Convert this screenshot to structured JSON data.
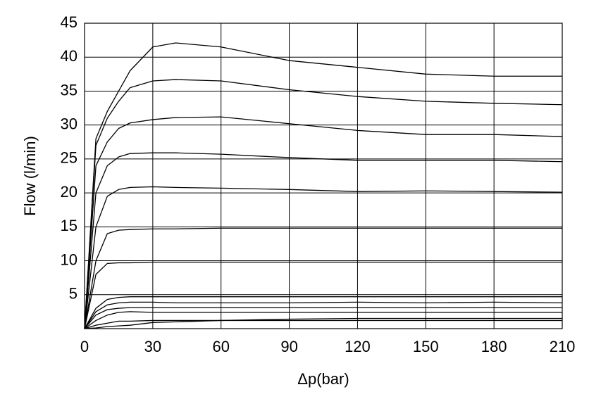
{
  "chart_data": {
    "type": "line",
    "x_label": "Δp(bar)",
    "y_label": "Flow (l/min)",
    "x": [
      0,
      5,
      10,
      15,
      20,
      30,
      40,
      60,
      90,
      120,
      150,
      180,
      210
    ],
    "series": [
      {
        "color": "#000000",
        "values": [
          0,
          28,
          32,
          35,
          38,
          41.5,
          42.1,
          41.5,
          39.5,
          38.5,
          37.5,
          37.2,
          37.2
        ]
      },
      {
        "color": "#000000",
        "values": [
          0,
          27,
          31,
          33.5,
          35.5,
          36.5,
          36.7,
          36.5,
          35.2,
          34.2,
          33.5,
          33.2,
          33
        ]
      },
      {
        "color": "#000000",
        "values": [
          0,
          24,
          27.5,
          29.5,
          30.3,
          30.8,
          31.1,
          31.2,
          30.2,
          29.2,
          28.6,
          28.6,
          28.3
        ]
      },
      {
        "color": "#000000",
        "values": [
          0,
          20,
          24,
          25.3,
          25.8,
          25.9,
          25.9,
          25.7,
          25.2,
          24.8,
          24.8,
          24.8,
          24.6
        ]
      },
      {
        "color": "#000000",
        "values": [
          0,
          15,
          19.5,
          20.5,
          20.8,
          20.9,
          20.8,
          20.7,
          20.5,
          20.2,
          20.3,
          20.2,
          20.1
        ]
      },
      {
        "color": "#000000",
        "values": [
          0,
          10,
          14,
          14.5,
          14.6,
          14.7,
          14.7,
          14.8,
          14.8,
          14.8,
          14.8,
          14.8,
          14.8
        ]
      },
      {
        "color": "#000000",
        "values": [
          0,
          8,
          9.6,
          9.7,
          9.7,
          9.8,
          9.8,
          9.8,
          9.8,
          9.8,
          9.8,
          9.8,
          9.8
        ]
      },
      {
        "color": "#000000",
        "values": [
          0,
          3,
          4.3,
          4.6,
          4.7,
          4.7,
          4.7,
          4.7,
          4.7,
          4.7,
          4.7,
          4.7,
          4.7
        ]
      },
      {
        "color": "#000000",
        "values": [
          0,
          2.5,
          3.5,
          3.8,
          3.9,
          3.9,
          3.8,
          3.8,
          3.8,
          3.9,
          3.8,
          3.9,
          3.8
        ]
      },
      {
        "color": "#000000",
        "values": [
          0,
          2,
          2.8,
          3,
          3.1,
          3.1,
          3.1,
          3.1,
          3.1,
          3.1,
          3.1,
          3.1,
          3.1
        ]
      },
      {
        "color": "#000000",
        "values": [
          0,
          1.2,
          2,
          2.4,
          2.5,
          2.4,
          2.4,
          2.4,
          2.4,
          2.4,
          2.4,
          2.4,
          2.4
        ]
      },
      {
        "color": "#000000",
        "values": [
          0,
          0.5,
          0.8,
          1.1,
          1.1,
          1.2,
          1.2,
          1.2,
          1.2,
          1.2,
          1.2,
          1.2,
          1.2
        ]
      },
      {
        "color": "#000000",
        "values": [
          0,
          0.1,
          0.3,
          0.4,
          0.5,
          0.9,
          1,
          1.2,
          1.4,
          1.5,
          1.5,
          1.5,
          1.5
        ]
      }
    ],
    "xlim": [
      0,
      210
    ],
    "xticks": [
      0,
      30,
      60,
      90,
      120,
      150,
      180,
      210
    ],
    "ylim": [
      0,
      45
    ],
    "yticks": [
      5,
      10,
      15,
      20,
      25,
      30,
      35,
      40,
      45
    ],
    "grid": true
  }
}
